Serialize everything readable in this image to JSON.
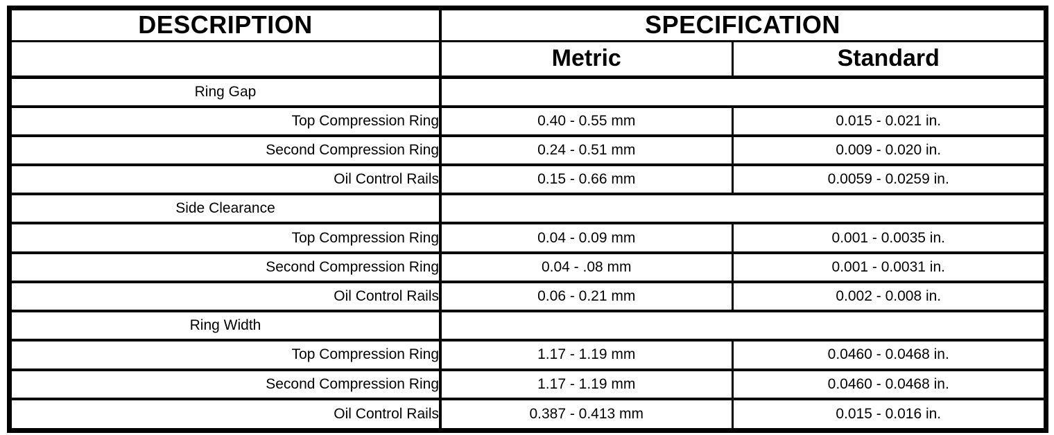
{
  "page": {
    "background_color": "#ffffff",
    "line_color": "#000000"
  },
  "table": {
    "header": {
      "description": "DESCRIPTION",
      "specification": "SPECIFICATION",
      "metric": "Metric",
      "standard": "Standard"
    },
    "rows": [
      {
        "type": "section",
        "description": "Ring Gap",
        "metric": "",
        "standard": ""
      },
      {
        "type": "item",
        "description": "Top Compression Ring",
        "metric": "0.40 - 0.55 mm",
        "standard": "0.015 - 0.021 in."
      },
      {
        "type": "item",
        "description": "Second Compression Ring",
        "metric": "0.24 - 0.51 mm",
        "standard": "0.009 - 0.020 in."
      },
      {
        "type": "item",
        "description": "Oil Control Rails",
        "metric": "0.15 - 0.66 mm",
        "standard": "0.0059 - 0.0259 in."
      },
      {
        "type": "section",
        "description": "Side Clearance",
        "metric": "",
        "standard": ""
      },
      {
        "type": "item",
        "description": "Top Compression Ring",
        "metric": "0.04 - 0.09 mm",
        "standard": "0.001 - 0.0035 in."
      },
      {
        "type": "item",
        "description": "Second Compression Ring",
        "metric": "0.04 - .08 mm",
        "standard": "0.001 - 0.0031 in."
      },
      {
        "type": "item",
        "description": "Oil Control Rails",
        "metric": "0.06 - 0.21 mm",
        "standard": "0.002 - 0.008 in."
      },
      {
        "type": "section",
        "description": "Ring Width",
        "metric": "",
        "standard": ""
      },
      {
        "type": "item",
        "description": "Top Compression Ring",
        "metric": "1.17 - 1.19 mm",
        "standard": "0.0460 - 0.0468 in."
      },
      {
        "type": "item",
        "description": "Second Compression Ring",
        "metric": "1.17 - 1.19 mm",
        "standard": "0.0460 - 0.0468 in."
      },
      {
        "type": "item",
        "description": "Oil Control Rails",
        "metric": "0.387 - 0.413 mm",
        "standard": "0.015 - 0.016 in."
      }
    ]
  }
}
